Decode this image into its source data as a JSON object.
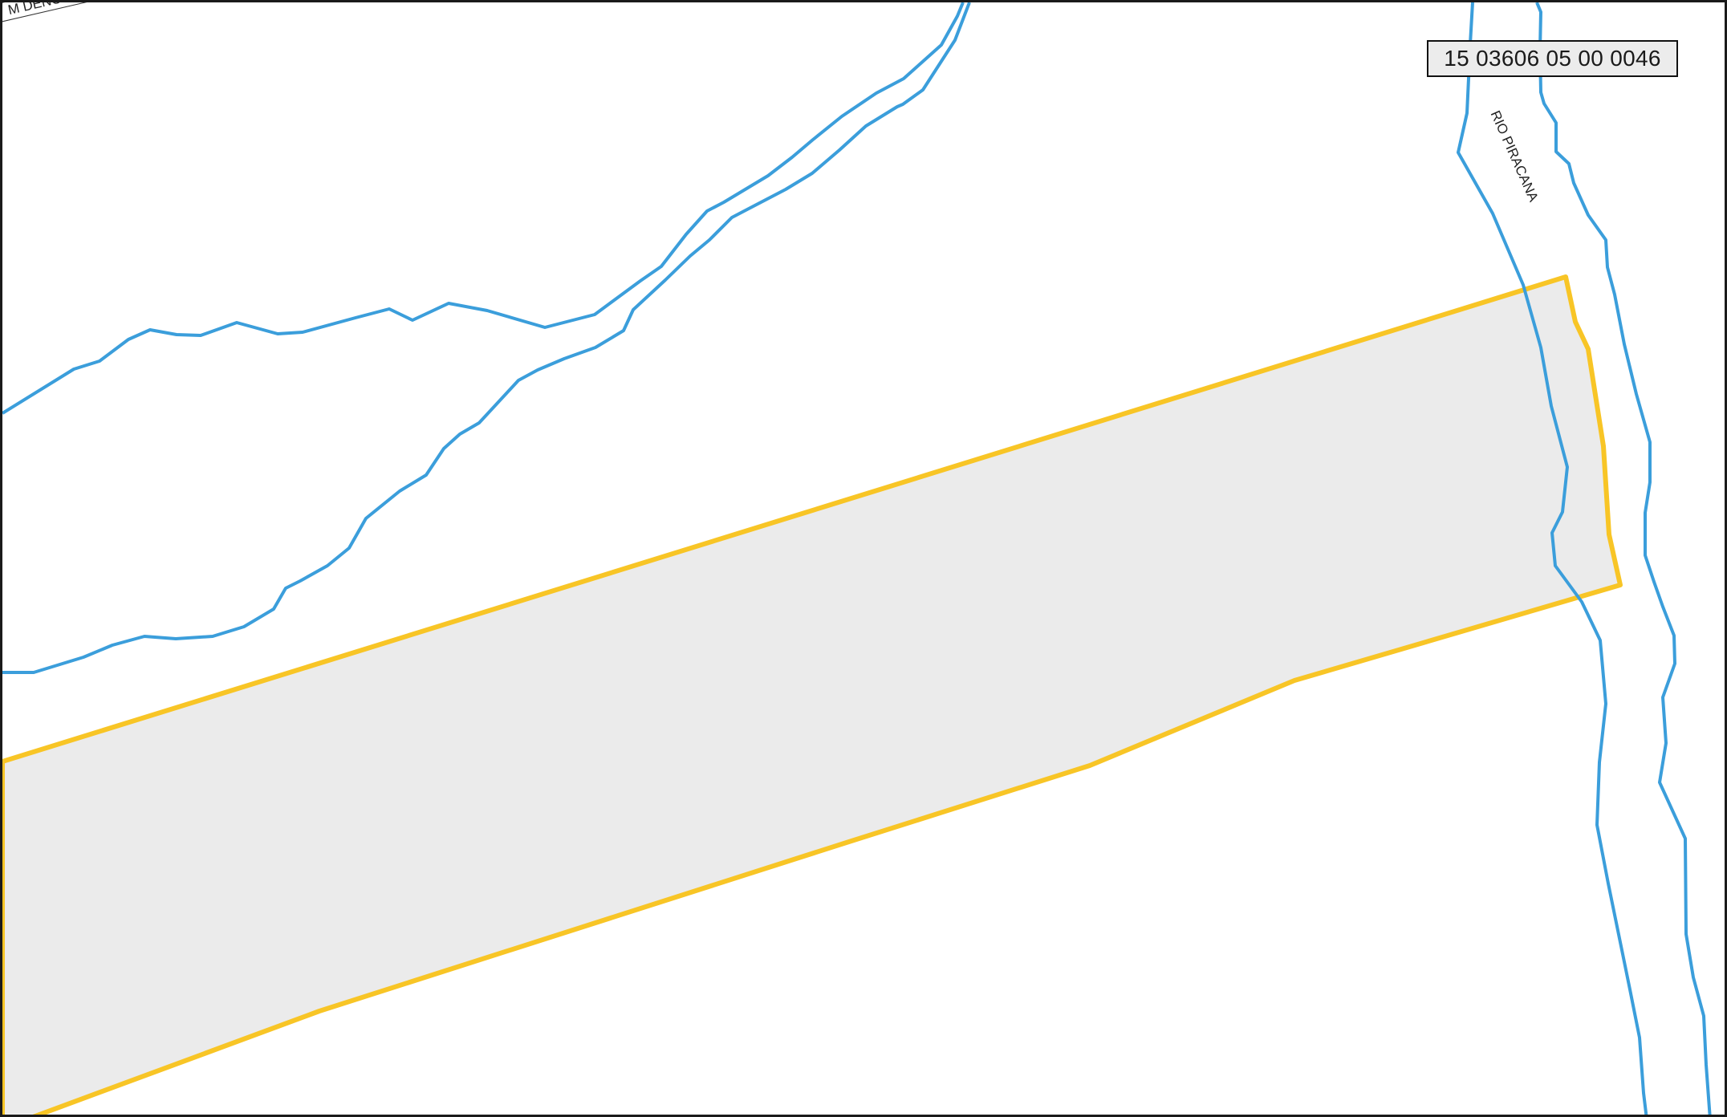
{
  "map": {
    "parcel_code": "15 03606 05 00 0046",
    "river_name": "RIO PIRACANA",
    "stream_label_partial": "M DENOMIN"
  },
  "colors": {
    "background": "#ffffff",
    "frame": "#1a1a1a",
    "parcel_fill": "#ebebeb",
    "parcel_outline": "#f8c526",
    "water_line": "#3b9edb",
    "label_box_fill": "#ececec"
  }
}
